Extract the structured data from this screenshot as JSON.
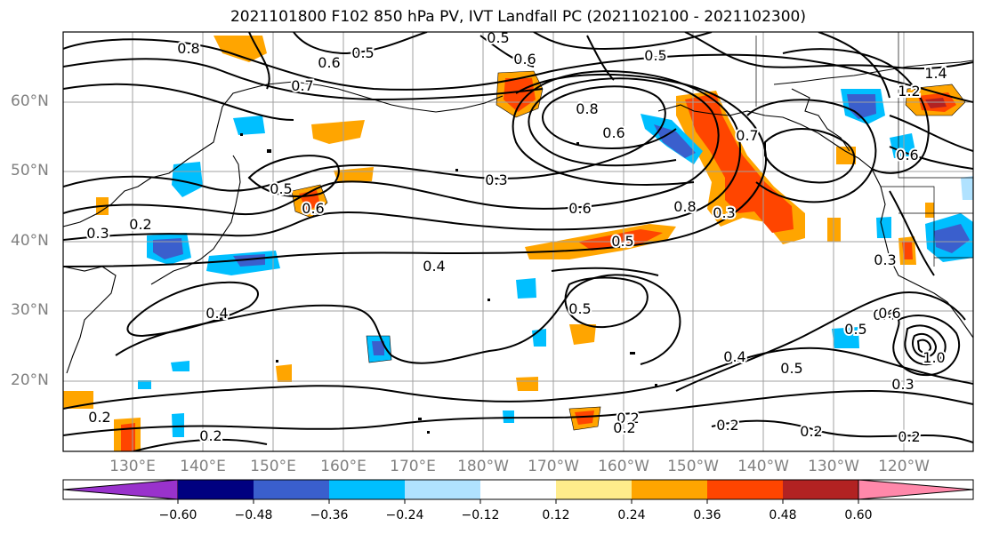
{
  "title": "2021101800 F102 850 hPa PV, IVT Landfall PC (2021102100 - 2021102300)",
  "lat_labels": [
    "60°N",
    "50°N",
    "40°N",
    "30°N",
    "20°N"
  ],
  "lon_labels": [
    "130°E",
    "140°E",
    "150°E",
    "160°E",
    "170°E",
    "180°W",
    "170°W",
    "160°W",
    "150°W",
    "140°W",
    "130°W",
    "120°W"
  ],
  "colorbar": {
    "colors": [
      "#9932cc",
      "#000080",
      "#3a5fcd",
      "#00bfff",
      "#b0e2ff",
      "#ffffff",
      "#ffffff",
      "#ffec8b",
      "#ffa500",
      "#ff4500",
      "#b22222",
      "#ff88aa"
    ],
    "ticks": [
      "−0.60",
      "−0.48",
      "−0.36",
      "−0.24",
      "−0.12",
      "0.12",
      "0.24",
      "0.36",
      "0.48",
      "0.60"
    ]
  },
  "contour_labels": [
    "0.8",
    "0.6",
    "0.5",
    "0.7",
    "0.5",
    "0.6",
    "0.5",
    "1.4",
    "1.2",
    "0.8",
    "0.6",
    "0.7",
    "0.6",
    "0.3",
    "0.6",
    "0.5",
    "0.6",
    "0.8",
    "0.3",
    "0.2",
    "0.3",
    "0.4",
    "0.5",
    "0.5",
    "0.6",
    "0.4",
    "0.5",
    "0.3",
    "0.2",
    "0.2",
    "0.2",
    "0.2",
    "0.2",
    "0.2",
    "0.4",
    "0.2",
    "1.0",
    "0.3",
    "0.5",
    "0.6"
  ]
}
